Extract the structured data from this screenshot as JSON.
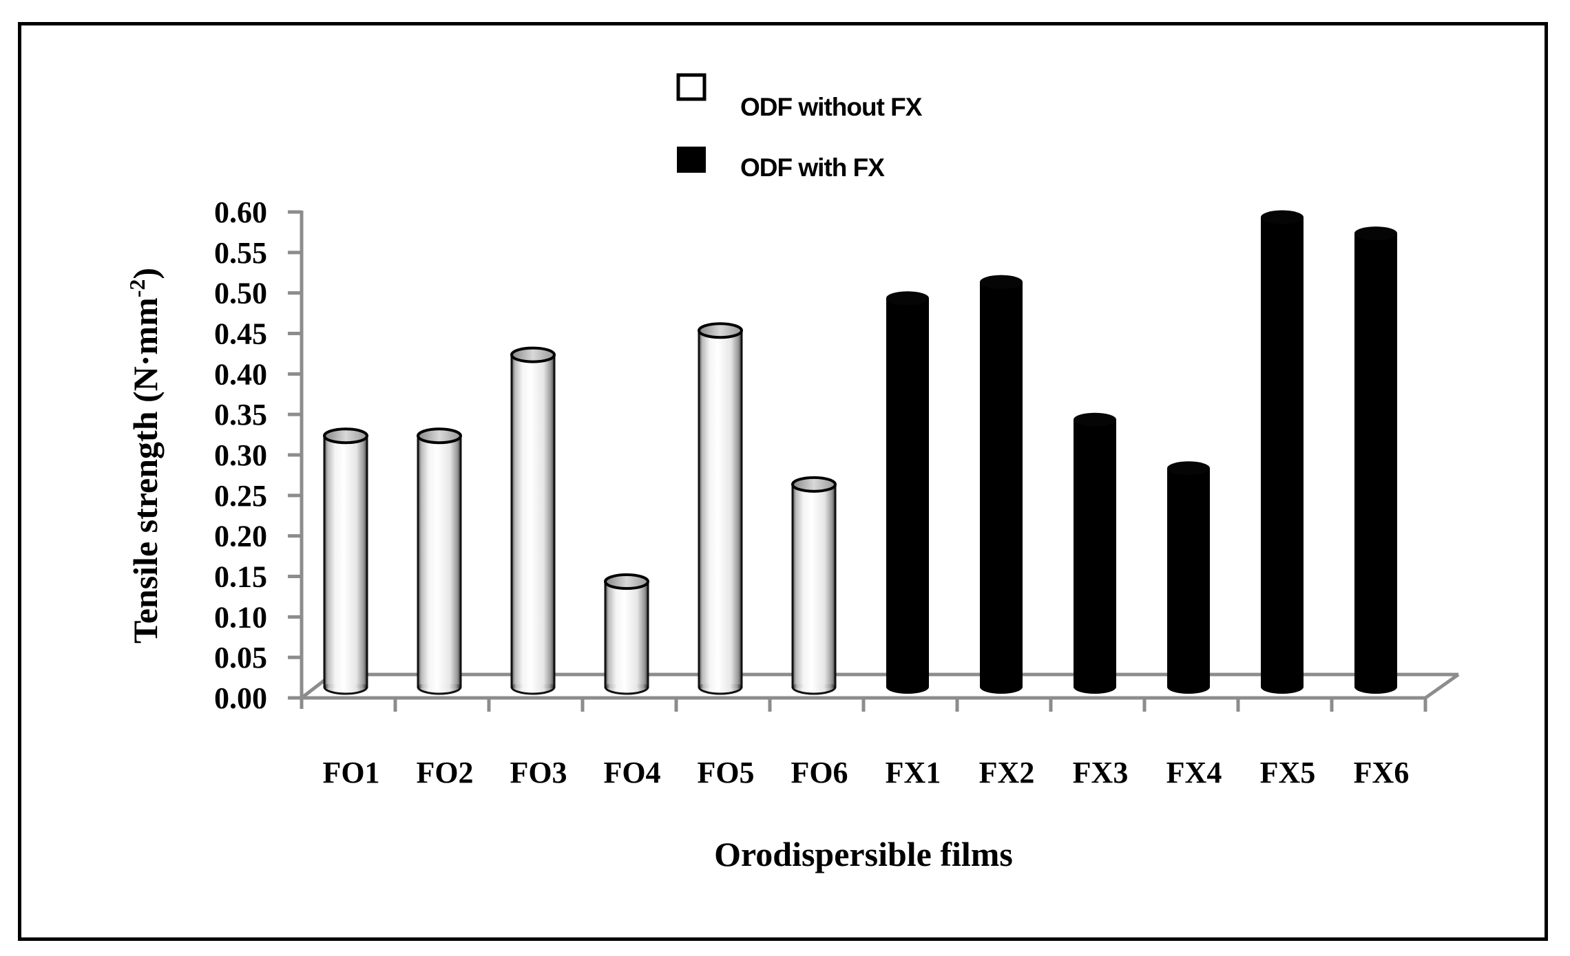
{
  "chart_data": {
    "type": "bar",
    "style": "3d-cylinder",
    "title": "",
    "xlabel": "Orodispersible films",
    "ylabel": "Tensile strength (N·mm⁻²)",
    "ylabel_parts": {
      "main": "Tensile strength (N·mm",
      "sup": "-2",
      "close": ")"
    },
    "ylim": [
      0,
      0.6
    ],
    "yticks": [
      "0.00",
      "0.05",
      "0.10",
      "0.15",
      "0.20",
      "0.25",
      "0.30",
      "0.35",
      "0.40",
      "0.45",
      "0.50",
      "0.55",
      "0.60"
    ],
    "grid": false,
    "legend_position": "top-center",
    "categories": [
      "FO1",
      "FO2",
      "FO3",
      "FO4",
      "FO5",
      "FO6",
      "FX1",
      "FX2",
      "FX3",
      "FX4",
      "FX5",
      "FX6"
    ],
    "series": [
      {
        "name": "ODF without FX",
        "color": "#ffffff",
        "values": [
          0.31,
          0.31,
          0.41,
          0.13,
          0.44,
          0.25,
          null,
          null,
          null,
          null,
          null,
          null
        ]
      },
      {
        "name": "ODF with FX",
        "color": "#000000",
        "values": [
          null,
          null,
          null,
          null,
          null,
          null,
          0.48,
          0.5,
          0.33,
          0.27,
          0.58,
          0.56
        ]
      }
    ],
    "axis_color": "#8c8c8c"
  },
  "legend": {
    "items": [
      {
        "label": "ODF without FX",
        "swatch": "white-square"
      },
      {
        "label": "ODF with FX",
        "swatch": "black-square"
      }
    ]
  }
}
